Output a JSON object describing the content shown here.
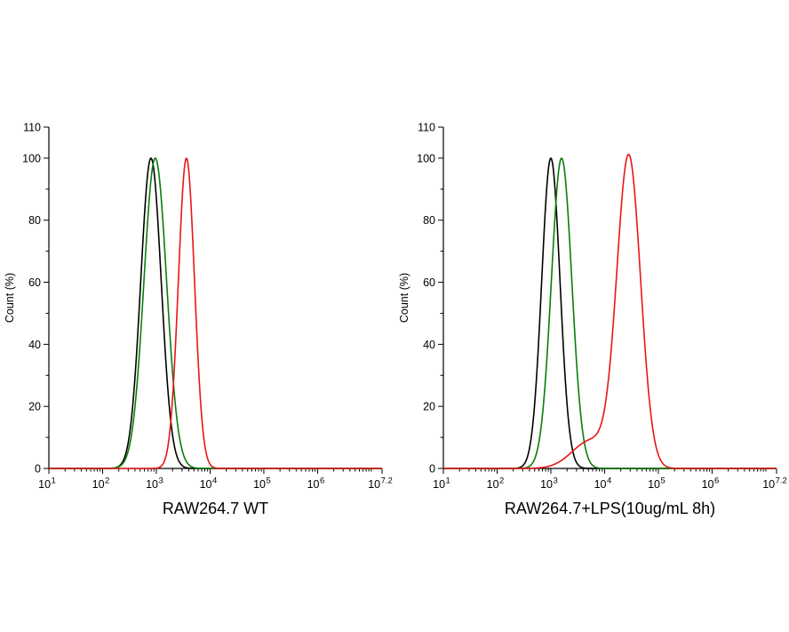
{
  "figure": {
    "background": "#ffffff"
  },
  "chart_data": [
    {
      "type": "line",
      "title": "RAW264.7 WT",
      "xlabel": "",
      "ylabel": "Count  (%)",
      "x_axis": {
        "scale": "log10",
        "min_exp": 1,
        "max_exp": 7.2,
        "major_tick_exponents": [
          1,
          2,
          3,
          4,
          5,
          6,
          7.2
        ],
        "tick_label_base": "10"
      },
      "y_axis": {
        "min": 0,
        "max": 110,
        "minor_step": 10,
        "labeled_ticks": [
          0,
          20,
          40,
          60,
          80,
          100,
          110
        ]
      },
      "grid": false,
      "series": [
        {
          "name": "black-histogram",
          "color": "#000000",
          "peaks": [
            {
              "center_log10": 2.9,
              "sigma": 0.19,
              "amplitude": 100
            }
          ]
        },
        {
          "name": "green-histogram",
          "color": "#0a7d0a",
          "peaks": [
            {
              "center_log10": 2.98,
              "sigma": 0.21,
              "amplitude": 100
            }
          ]
        },
        {
          "name": "red-histogram",
          "color": "#e81515",
          "peaks": [
            {
              "center_log10": 3.56,
              "sigma": 0.15,
              "amplitude": 100
            }
          ]
        }
      ]
    },
    {
      "type": "line",
      "title": "RAW264.7+LPS(10ug/mL 8h)",
      "xlabel": "",
      "ylabel": "Count  (%)",
      "x_axis": {
        "scale": "log10",
        "min_exp": 1,
        "max_exp": 7.2,
        "major_tick_exponents": [
          1,
          2,
          3,
          4,
          5,
          6,
          7.2
        ],
        "tick_label_base": "10"
      },
      "y_axis": {
        "min": 0,
        "max": 110,
        "minor_step": 10,
        "labeled_ticks": [
          0,
          20,
          40,
          60,
          80,
          100,
          110
        ]
      },
      "grid": false,
      "series": [
        {
          "name": "black-histogram",
          "color": "#000000",
          "peaks": [
            {
              "center_log10": 3.0,
              "sigma": 0.17,
              "amplitude": 100
            }
          ]
        },
        {
          "name": "green-histogram",
          "color": "#0a7d0a",
          "peaks": [
            {
              "center_log10": 3.2,
              "sigma": 0.19,
              "amplitude": 100
            }
          ]
        },
        {
          "name": "red-histogram",
          "color": "#e81515",
          "peaks": [
            {
              "center_log10": 4.45,
              "sigma": 0.22,
              "amplitude": 100
            },
            {
              "center_log10": 3.75,
              "sigma": 0.35,
              "amplitude": 9
            }
          ]
        }
      ]
    }
  ]
}
